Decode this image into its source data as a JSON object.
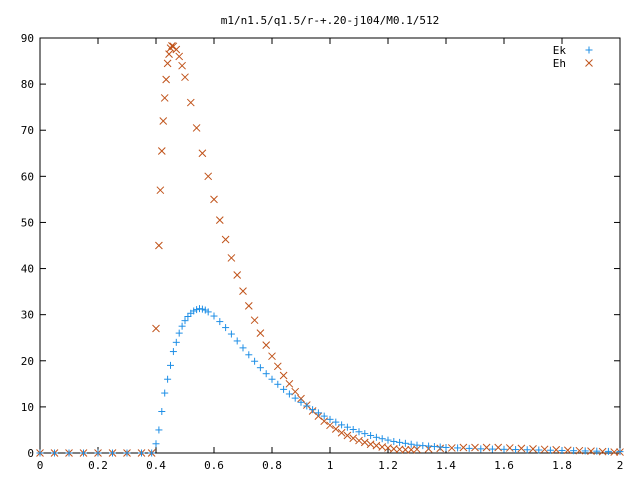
{
  "chart_data": {
    "type": "scatter",
    "title": "m1/n1.5/q1.5/r-+.20-j104/M0.1/512",
    "xlabel": "",
    "ylabel": "",
    "xlim": [
      0,
      2
    ],
    "ylim": [
      0,
      90
    ],
    "grid": false,
    "legend_position": "top-right",
    "x_ticks": [
      "0",
      "0.2",
      "0.4",
      "0.6",
      "0.8",
      "1",
      "1.2",
      "1.4",
      "1.6",
      "1.8",
      "2"
    ],
    "y_ticks": [
      "0",
      "10",
      "20",
      "30",
      "40",
      "50",
      "60",
      "70",
      "80",
      "90"
    ],
    "x_tick_values": [
      0,
      0.2,
      0.4,
      0.6,
      0.8,
      1.0,
      1.2,
      1.4,
      1.6,
      1.8,
      2.0
    ],
    "y_tick_values": [
      0,
      10,
      20,
      30,
      40,
      50,
      60,
      70,
      80,
      90
    ],
    "series": [
      {
        "name": "Ek",
        "marker": "plus",
        "color": "#1f8fe6",
        "points": [
          [
            0.0,
            0
          ],
          [
            0.05,
            0
          ],
          [
            0.1,
            0
          ],
          [
            0.15,
            0
          ],
          [
            0.2,
            0
          ],
          [
            0.25,
            0
          ],
          [
            0.3,
            0
          ],
          [
            0.35,
            0
          ],
          [
            0.385,
            0
          ],
          [
            0.4,
            2
          ],
          [
            0.41,
            5
          ],
          [
            0.42,
            9
          ],
          [
            0.43,
            13
          ],
          [
            0.44,
            16
          ],
          [
            0.45,
            19
          ],
          [
            0.46,
            22
          ],
          [
            0.47,
            24
          ],
          [
            0.48,
            26
          ],
          [
            0.49,
            27.5
          ],
          [
            0.5,
            28.7
          ],
          [
            0.51,
            29.6
          ],
          [
            0.52,
            30.3
          ],
          [
            0.53,
            30.8
          ],
          [
            0.54,
            31.1
          ],
          [
            0.55,
            31.3
          ],
          [
            0.56,
            31.2
          ],
          [
            0.57,
            31.0
          ],
          [
            0.58,
            30.6
          ],
          [
            0.6,
            29.7
          ],
          [
            0.62,
            28.5
          ],
          [
            0.64,
            27.2
          ],
          [
            0.66,
            25.8
          ],
          [
            0.68,
            24.3
          ],
          [
            0.7,
            22.8
          ],
          [
            0.72,
            21.3
          ],
          [
            0.74,
            19.9
          ],
          [
            0.76,
            18.5
          ],
          [
            0.78,
            17.2
          ],
          [
            0.8,
            16.0
          ],
          [
            0.82,
            14.9
          ],
          [
            0.84,
            13.8
          ],
          [
            0.86,
            12.8
          ],
          [
            0.88,
            11.9
          ],
          [
            0.9,
            11.0
          ],
          [
            0.92,
            10.2
          ],
          [
            0.94,
            9.4
          ],
          [
            0.96,
            8.7
          ],
          [
            0.98,
            8.0
          ],
          [
            1.0,
            7.3
          ],
          [
            1.02,
            6.7
          ],
          [
            1.04,
            6.1
          ],
          [
            1.06,
            5.6
          ],
          [
            1.08,
            5.1
          ],
          [
            1.1,
            4.6
          ],
          [
            1.12,
            4.2
          ],
          [
            1.14,
            3.8
          ],
          [
            1.16,
            3.4
          ],
          [
            1.18,
            3.1
          ],
          [
            1.2,
            2.8
          ],
          [
            1.22,
            2.5
          ],
          [
            1.24,
            2.3
          ],
          [
            1.26,
            2.1
          ],
          [
            1.28,
            1.9
          ],
          [
            1.3,
            1.7
          ],
          [
            1.32,
            1.6
          ],
          [
            1.34,
            1.5
          ],
          [
            1.36,
            1.4
          ],
          [
            1.38,
            1.3
          ],
          [
            1.4,
            1.2
          ],
          [
            1.44,
            1.1
          ],
          [
            1.48,
            1.0
          ],
          [
            1.52,
            0.9
          ],
          [
            1.56,
            0.85
          ],
          [
            1.6,
            0.8
          ],
          [
            1.64,
            0.75
          ],
          [
            1.68,
            0.7
          ],
          [
            1.72,
            0.65
          ],
          [
            1.76,
            0.6
          ],
          [
            1.8,
            0.55
          ],
          [
            1.84,
            0.5
          ],
          [
            1.88,
            0.45
          ],
          [
            1.92,
            0.4
          ],
          [
            1.96,
            0.35
          ],
          [
            2.0,
            0.3
          ]
        ]
      },
      {
        "name": "Eh",
        "marker": "cross",
        "color": "#c0531a",
        "points": [
          [
            0.0,
            0
          ],
          [
            0.05,
            0
          ],
          [
            0.1,
            0
          ],
          [
            0.15,
            0
          ],
          [
            0.2,
            0
          ],
          [
            0.25,
            0
          ],
          [
            0.3,
            0
          ],
          [
            0.35,
            0
          ],
          [
            0.385,
            0
          ],
          [
            0.4,
            27
          ],
          [
            0.41,
            45
          ],
          [
            0.415,
            57
          ],
          [
            0.42,
            65.5
          ],
          [
            0.425,
            72
          ],
          [
            0.43,
            77
          ],
          [
            0.435,
            81
          ],
          [
            0.44,
            84.5
          ],
          [
            0.445,
            86.5
          ],
          [
            0.45,
            87.8
          ],
          [
            0.455,
            88.3
          ],
          [
            0.46,
            88.2
          ],
          [
            0.47,
            87.5
          ],
          [
            0.48,
            86.0
          ],
          [
            0.49,
            84.0
          ],
          [
            0.5,
            81.5
          ],
          [
            0.52,
            76.0
          ],
          [
            0.54,
            70.5
          ],
          [
            0.56,
            65.0
          ],
          [
            0.58,
            60.0
          ],
          [
            0.6,
            55.0
          ],
          [
            0.62,
            50.5
          ],
          [
            0.64,
            46.3
          ],
          [
            0.66,
            42.3
          ],
          [
            0.68,
            38.6
          ],
          [
            0.7,
            35.1
          ],
          [
            0.72,
            31.9
          ],
          [
            0.74,
            28.8
          ],
          [
            0.76,
            26.0
          ],
          [
            0.78,
            23.4
          ],
          [
            0.8,
            21.0
          ],
          [
            0.82,
            18.8
          ],
          [
            0.84,
            16.8
          ],
          [
            0.86,
            15.0
          ],
          [
            0.88,
            13.3
          ],
          [
            0.9,
            11.8
          ],
          [
            0.92,
            10.4
          ],
          [
            0.94,
            9.1
          ],
          [
            0.96,
            8.0
          ],
          [
            0.98,
            6.9
          ],
          [
            1.0,
            6.0
          ],
          [
            1.02,
            5.2
          ],
          [
            1.04,
            4.4
          ],
          [
            1.06,
            3.8
          ],
          [
            1.08,
            3.2
          ],
          [
            1.1,
            2.7
          ],
          [
            1.12,
            2.3
          ],
          [
            1.14,
            1.9
          ],
          [
            1.16,
            1.6
          ],
          [
            1.18,
            1.3
          ],
          [
            1.2,
            1.1
          ],
          [
            1.22,
            0.9
          ],
          [
            1.24,
            0.8
          ],
          [
            1.26,
            0.7
          ],
          [
            1.28,
            0.7
          ],
          [
            1.3,
            0.8
          ],
          [
            1.34,
            0.9
          ],
          [
            1.38,
            1.0
          ],
          [
            1.42,
            1.1
          ],
          [
            1.46,
            1.2
          ],
          [
            1.5,
            1.2
          ],
          [
            1.54,
            1.2
          ],
          [
            1.58,
            1.2
          ],
          [
            1.62,
            1.1
          ],
          [
            1.66,
            1.0
          ],
          [
            1.7,
            0.9
          ],
          [
            1.74,
            0.8
          ],
          [
            1.78,
            0.7
          ],
          [
            1.82,
            0.6
          ],
          [
            1.86,
            0.5
          ],
          [
            1.9,
            0.4
          ],
          [
            1.94,
            0.3
          ],
          [
            1.98,
            0.2
          ],
          [
            2.0,
            0.2
          ]
        ]
      }
    ]
  }
}
